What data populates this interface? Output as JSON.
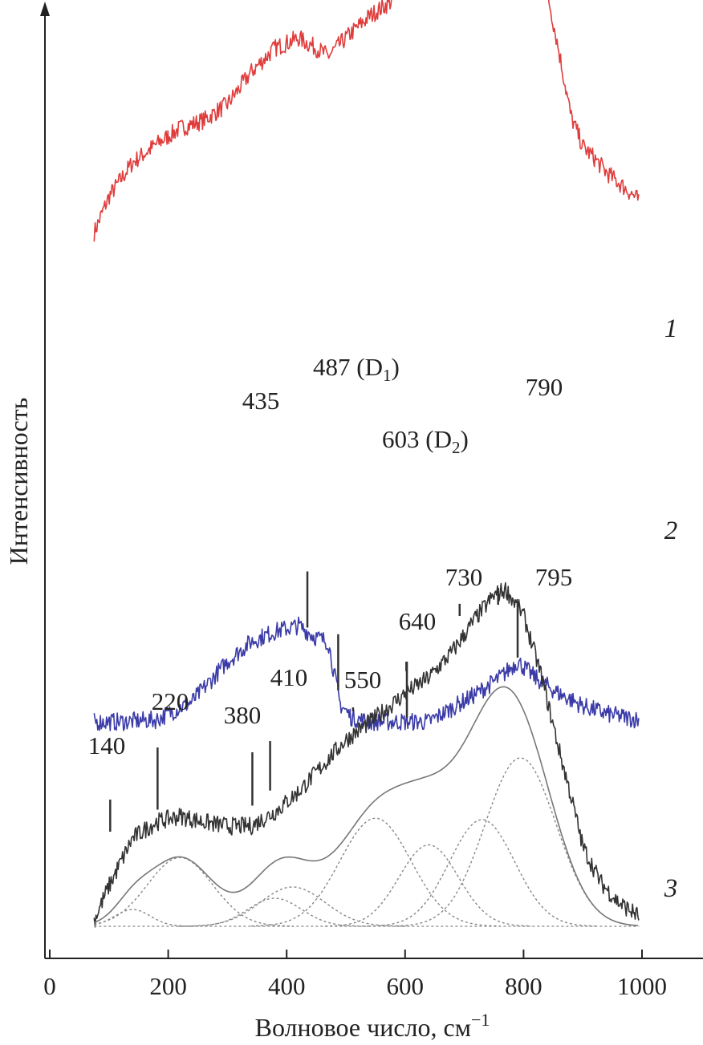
{
  "chart_data": {
    "type": "line",
    "xlabel": "Волновое число, см",
    "xlabel_sup": "−1",
    "ylabel": "Интенсивность",
    "xlim": [
      0,
      1000
    ],
    "x_ticks": [
      0,
      200,
      400,
      600,
      800,
      1000
    ],
    "grid": false,
    "y_ticks_shown": false,
    "series": [
      {
        "name": "1",
        "color": "#e03c3c",
        "x": [
          75,
          100,
          140,
          180,
          220,
          260,
          300,
          340,
          380,
          420,
          450,
          470,
          500,
          540,
          580,
          620,
          660,
          700,
          740,
          760,
          780,
          800,
          820,
          840,
          860,
          880,
          900,
          920,
          940,
          960,
          980,
          995
        ],
        "y": [
          60,
          78,
          95,
          104,
          112,
          116,
          124,
          140,
          152,
          157,
          152,
          148,
          157,
          168,
          176,
          195,
          212,
          232,
          248,
          252,
          244,
          230,
          205,
          180,
          150,
          118,
          103,
          97,
          90,
          85,
          80,
          76
        ]
      },
      {
        "name": "2",
        "color": "#3b3ba8",
        "x": [
          75,
          120,
          180,
          240,
          300,
          340,
          380,
          420,
          450,
          470,
          490,
          510,
          540,
          570,
          600,
          640,
          680,
          720,
          760,
          790,
          820,
          860,
          900,
          940,
          995
        ],
        "y": [
          -152,
          -152,
          -151,
          -142,
          -122,
          -112,
          -107,
          -104,
          -110,
          -112,
          -143,
          -150,
          -152,
          -152,
          -152,
          -152,
          -145,
          -138,
          -130,
          -122,
          -130,
          -138,
          -144,
          -148,
          -151
        ]
      },
      {
        "name": "3",
        "color": "#333333",
        "x": [
          75,
          100,
          140,
          180,
          220,
          260,
          300,
          340,
          380,
          420,
          460,
          500,
          550,
          600,
          640,
          680,
          720,
          750,
          770,
          800,
          830,
          860,
          880,
          900,
          930,
          960,
          995
        ],
        "y": [
          3,
          20,
          44,
          52,
          55,
          52,
          50,
          50,
          57,
          67,
          80,
          93,
          104,
          116,
          124,
          137,
          154,
          165,
          168,
          155,
          125,
          88,
          65,
          40,
          22,
          12,
          5
        ]
      }
    ],
    "components": [
      {
        "center": 140,
        "amplitude": 12,
        "width": 30
      },
      {
        "center": 220,
        "amplitude": 49,
        "width": 55
      },
      {
        "center": 380,
        "amplitude": 20,
        "width": 45
      },
      {
        "center": 410,
        "amplitude": 28,
        "width": 55
      },
      {
        "center": 550,
        "amplitude": 77,
        "width": 60
      },
      {
        "center": 640,
        "amplitude": 58,
        "width": 50
      },
      {
        "center": 730,
        "amplitude": 76,
        "width": 55
      },
      {
        "center": 795,
        "amplitude": 120,
        "width": 60
      }
    ],
    "peak_labels": {
      "series2": [
        {
          "x": 435,
          "label": "435"
        },
        {
          "x": 487,
          "label": "487 (D",
          "sub": "1",
          "suffix": ")"
        },
        {
          "x": 603,
          "label": "603 (D",
          "sub": "2",
          "suffix": ")"
        },
        {
          "x": 790,
          "label": "790"
        }
      ],
      "series3": [
        {
          "x": 140,
          "label": "140"
        },
        {
          "x": 220,
          "label": "220"
        },
        {
          "x": 380,
          "label": "380"
        },
        {
          "x": 410,
          "label": "410"
        },
        {
          "x": 550,
          "label": "550"
        },
        {
          "x": 640,
          "label": "640"
        },
        {
          "x": 730,
          "label": "730"
        },
        {
          "x": 795,
          "label": "795"
        }
      ]
    }
  }
}
